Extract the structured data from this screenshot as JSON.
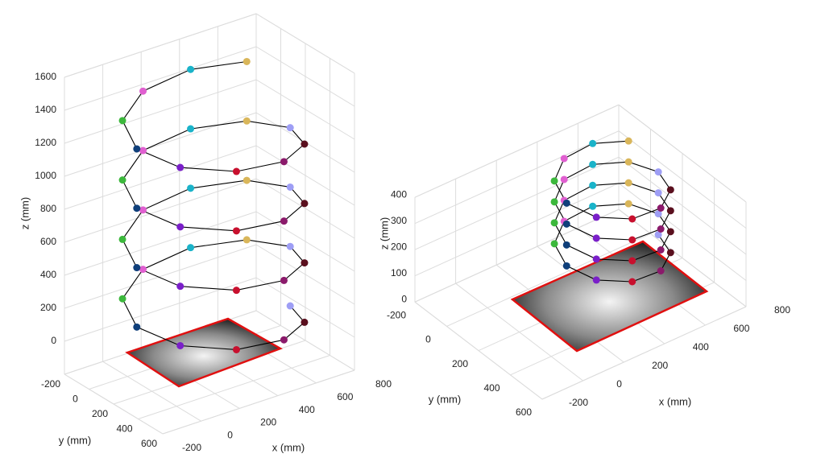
{
  "chart_data": [
    {
      "type": "scatter3d",
      "xlabel": "x (mm)",
      "ylabel": "y (mm)",
      "zlabel": "z (mm)",
      "xlim": [
        -200,
        800
      ],
      "ylim": [
        -200,
        600
      ],
      "zlim": [
        -200,
        1600
      ],
      "xticks": [
        -200,
        0,
        200,
        400,
        600,
        800
      ],
      "yticks": [
        -200,
        0,
        200,
        400,
        600
      ],
      "zticks": [
        0,
        200,
        400,
        600,
        800,
        1000,
        1200,
        1400,
        1600
      ],
      "grid": true,
      "line_color": "#000000",
      "marker_colors": [
        "#9e9ef5",
        "#5a0f1e",
        "#8b1a6b",
        "#c8102e",
        "#7a1fc9",
        "#0f3f7a",
        "#3cb83c",
        "#e05fd0",
        "#1ab3c9",
        "#d9b65a"
      ],
      "series": [
        {
          "x": [
            721,
            645,
            445,
            197,
            -3,
            -79,
            -3,
            197,
            445,
            645,
            721,
            645,
            445,
            197,
            -3,
            -79,
            -3,
            197,
            445,
            645,
            721,
            645,
            445,
            197,
            -3,
            -79,
            -3,
            197,
            445,
            645,
            721,
            645,
            445,
            197,
            -3,
            -79,
            -3,
            197,
            445,
            645
          ],
          "y": [
            200,
            435,
            580,
            580,
            435,
            200,
            -35,
            -180,
            -180,
            -35,
            200,
            435,
            580,
            580,
            435,
            200,
            -35,
            -180,
            -180,
            -35,
            200,
            435,
            580,
            580,
            435,
            200,
            -35,
            -180,
            -180,
            -35,
            200,
            435,
            580,
            580,
            435,
            200,
            -35,
            -180,
            -180,
            -35
          ],
          "z": [
            40,
            76,
            112,
            148,
            184,
            220,
            256,
            292,
            328,
            364,
            400,
            436,
            472,
            508,
            544,
            580,
            616,
            652,
            688,
            724,
            760,
            796,
            832,
            868,
            904,
            940,
            976,
            1012,
            1048,
            1084,
            1120,
            1156,
            1192,
            1228,
            1264,
            1300,
            1336,
            1372,
            1408,
            1444
          ]
        }
      ]
    },
    {
      "type": "scatter3d",
      "xlabel": "x (mm)",
      "ylabel": "y (mm)",
      "zlabel": "z (mm)",
      "xlim": [
        -200,
        800
      ],
      "ylim": [
        -200,
        600
      ],
      "zlim": [
        0,
        400
      ],
      "xticks": [
        -200,
        0,
        200,
        400,
        600,
        800
      ],
      "yticks": [
        -200,
        0,
        200,
        400,
        600
      ],
      "zticks": [
        0,
        100,
        200,
        300,
        400
      ],
      "grid": true,
      "line_color": "#000000",
      "marker_colors": [
        "#9e9ef5",
        "#5a0f1e",
        "#8b1a6b",
        "#c8102e",
        "#7a1fc9",
        "#0f3f7a",
        "#3cb83c",
        "#e05fd0",
        "#1ab3c9",
        "#d9b65a"
      ],
      "series": [
        {
          "x": [
            799,
            756,
            644,
            504,
            392,
            349,
            392,
            504,
            644,
            756,
            799,
            756,
            644,
            504,
            392,
            349,
            392,
            504,
            644,
            756,
            799,
            756,
            644,
            504,
            392,
            349,
            392,
            504,
            644,
            756,
            799,
            756,
            644,
            504,
            392,
            349,
            392,
            504,
            644,
            756
          ],
          "y": [
            50,
            182,
            264,
            264,
            182,
            50,
            -82,
            -164,
            -164,
            -82,
            50,
            182,
            264,
            264,
            182,
            50,
            -82,
            -164,
            -164,
            -82,
            50,
            182,
            264,
            264,
            182,
            50,
            -82,
            -164,
            -164,
            -82,
            50,
            182,
            264,
            264,
            182,
            50,
            -82,
            -164,
            -164,
            -82
          ],
          "z": [
            20,
            28,
            36,
            44,
            52,
            60,
            68,
            76,
            84,
            92,
            100,
            108,
            116,
            124,
            132,
            140,
            148,
            156,
            164,
            172,
            180,
            188,
            196,
            204,
            212,
            220,
            228,
            236,
            244,
            252,
            260,
            268,
            276,
            284,
            292,
            300,
            308,
            316,
            324,
            332
          ]
        }
      ]
    }
  ]
}
